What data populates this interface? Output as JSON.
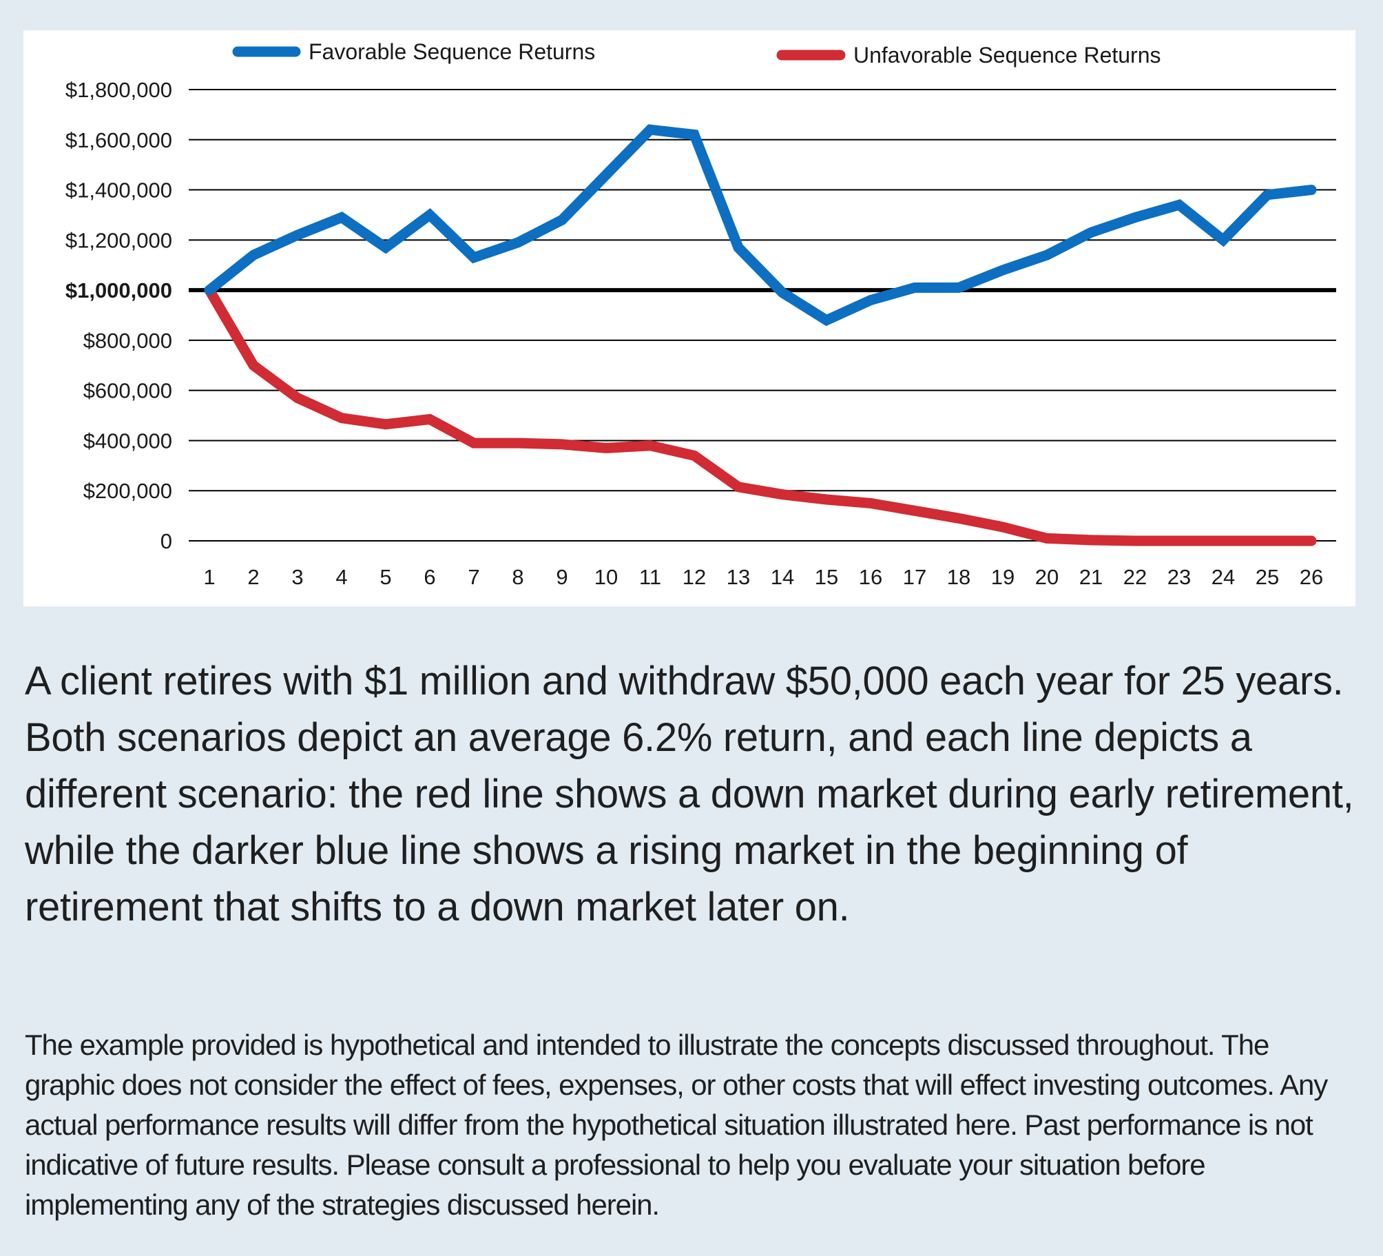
{
  "chart_data": {
    "type": "line",
    "x": [
      1,
      2,
      3,
      4,
      5,
      6,
      7,
      8,
      9,
      10,
      11,
      12,
      13,
      14,
      15,
      16,
      17,
      18,
      19,
      20,
      21,
      22,
      23,
      24,
      25,
      26
    ],
    "series": [
      {
        "name": "Favorable Sequence Returns",
        "color": "#0d6fc1",
        "values": [
          1000000,
          1140000,
          1220000,
          1290000,
          1170000,
          1300000,
          1130000,
          1190000,
          1280000,
          1460000,
          1640000,
          1620000,
          1170000,
          990000,
          880000,
          960000,
          1010000,
          1010000,
          1080000,
          1140000,
          1230000,
          1290000,
          1340000,
          1200000,
          1380000,
          1400000
        ]
      },
      {
        "name": "Unfavorable Sequence Returns",
        "color": "#d12b33",
        "values": [
          1000000,
          700000,
          570000,
          490000,
          465000,
          485000,
          390000,
          390000,
          385000,
          370000,
          380000,
          340000,
          215000,
          185000,
          165000,
          150000,
          120000,
          90000,
          55000,
          10000,
          3000,
          0,
          0,
          0,
          0,
          0
        ]
      }
    ],
    "y_ticks": [
      {
        "value": 0,
        "label": "0"
      },
      {
        "value": 200000,
        "label": "$200,000"
      },
      {
        "value": 400000,
        "label": "$400,000"
      },
      {
        "value": 600000,
        "label": "$600,000"
      },
      {
        "value": 800000,
        "label": "$800,000"
      },
      {
        "value": 1000000,
        "label": "$1,000,000",
        "emphasis": true
      },
      {
        "value": 1200000,
        "label": "$1,200,000"
      },
      {
        "value": 1400000,
        "label": "$1,400,000"
      },
      {
        "value": 1600000,
        "label": "$1,600,000"
      },
      {
        "value": 1800000,
        "label": "$1,800,000"
      }
    ],
    "x_tick_labels": [
      "1",
      "2",
      "3",
      "4",
      "5",
      "6",
      "7",
      "8",
      "9",
      "10",
      "11",
      "12",
      "13",
      "14",
      "15",
      "16",
      "17",
      "18",
      "19",
      "20",
      "21",
      "22",
      "23",
      "24",
      "25",
      "26"
    ],
    "ylim": [
      0,
      1800000
    ],
    "grid": true,
    "legend_position": "top",
    "title": "",
    "xlabel": "",
    "ylabel": ""
  },
  "description": "A client retires with $1 million and withdraw $50,000 each year for 25 years. Both scenarios depict an average 6.2% return, and each line depicts a different scenario: the red line shows a down market during early retirement, while the darker blue line shows a rising market in the beginning of retirement that shifts to a down market later on.",
  "disclaimer": "The example provided is hypothetical and intended to illustrate the concepts discussed throughout. The graphic does not consider the effect of fees, expenses, or other costs that will effect investing outcomes. Any actual performance results will differ from the hypothetical situation illustrated here. Past performance is not indicative of future results. Please consult a professional to help you evaluate your situation before implementing any of the strategies discussed herein."
}
